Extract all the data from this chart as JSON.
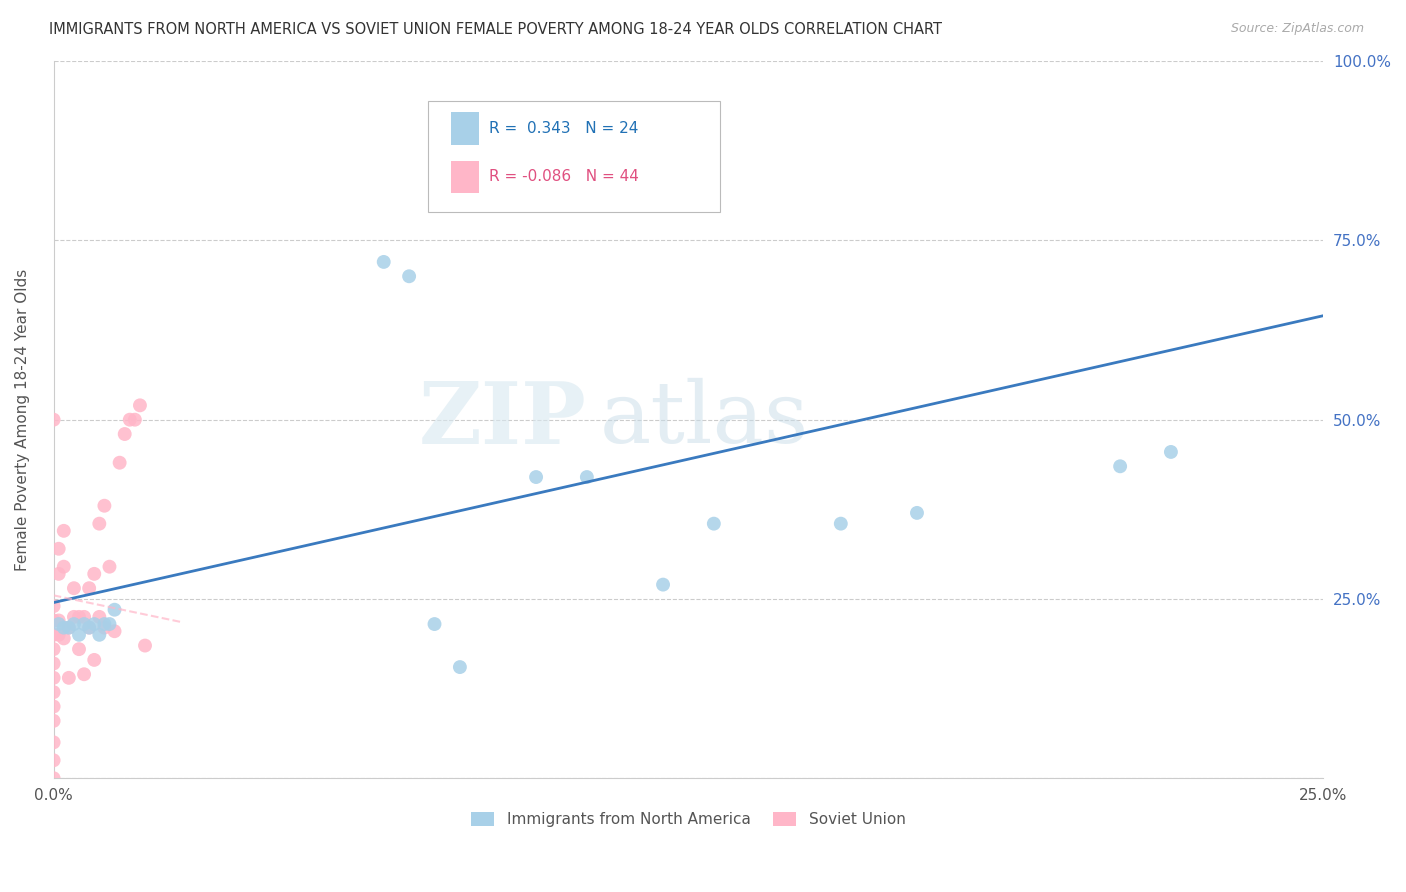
{
  "title": "IMMIGRANTS FROM NORTH AMERICA VS SOVIET UNION FEMALE POVERTY AMONG 18-24 YEAR OLDS CORRELATION CHART",
  "source": "Source: ZipAtlas.com",
  "ylabel": "Female Poverty Among 18-24 Year Olds",
  "xlim": [
    0.0,
    0.25
  ],
  "ylim": [
    0.0,
    1.0
  ],
  "na_color": "#a8d0e8",
  "soviet_color": "#ffb6c8",
  "na_line_color": "#3a7abf",
  "soviet_line_color": "#ffb6c8",
  "na_R": 0.343,
  "na_N": 24,
  "soviet_R": -0.086,
  "soviet_N": 44,
  "watermark_zip": "ZIP",
  "watermark_atlas": "atlas",
  "background_color": "#ffffff",
  "grid_color": "#cccccc",
  "na_line_x0": 0.0,
  "na_line_y0": 0.245,
  "na_line_x1": 0.25,
  "na_line_y1": 0.645,
  "sov_line_x0": 0.0,
  "sov_line_y0": 0.255,
  "sov_line_x1": 0.025,
  "sov_line_y1": 0.218,
  "na_x": [
    0.001,
    0.002,
    0.003,
    0.004,
    0.005,
    0.006,
    0.007,
    0.008,
    0.009,
    0.01,
    0.011,
    0.012,
    0.065,
    0.07,
    0.075,
    0.08,
    0.095,
    0.105,
    0.12,
    0.13,
    0.155,
    0.17,
    0.21,
    0.22
  ],
  "na_y": [
    0.215,
    0.21,
    0.21,
    0.215,
    0.2,
    0.215,
    0.21,
    0.215,
    0.2,
    0.215,
    0.215,
    0.235,
    0.72,
    0.7,
    0.215,
    0.155,
    0.42,
    0.42,
    0.27,
    0.355,
    0.355,
    0.37,
    0.435,
    0.455
  ],
  "sov_x": [
    0.0,
    0.0,
    0.0,
    0.0,
    0.0,
    0.0,
    0.0,
    0.0,
    0.0,
    0.0,
    0.0,
    0.0,
    0.0,
    0.001,
    0.001,
    0.001,
    0.001,
    0.002,
    0.002,
    0.002,
    0.003,
    0.003,
    0.004,
    0.004,
    0.005,
    0.005,
    0.006,
    0.006,
    0.007,
    0.007,
    0.008,
    0.008,
    0.009,
    0.009,
    0.01,
    0.01,
    0.011,
    0.012,
    0.013,
    0.014,
    0.015,
    0.016,
    0.017,
    0.018
  ],
  "sov_y": [
    0.0,
    0.025,
    0.05,
    0.08,
    0.1,
    0.12,
    0.14,
    0.16,
    0.18,
    0.2,
    0.22,
    0.24,
    0.5,
    0.2,
    0.22,
    0.285,
    0.32,
    0.195,
    0.295,
    0.345,
    0.14,
    0.21,
    0.225,
    0.265,
    0.18,
    0.225,
    0.145,
    0.225,
    0.21,
    0.265,
    0.165,
    0.285,
    0.225,
    0.355,
    0.21,
    0.38,
    0.295,
    0.205,
    0.44,
    0.48,
    0.5,
    0.5,
    0.52,
    0.185
  ]
}
